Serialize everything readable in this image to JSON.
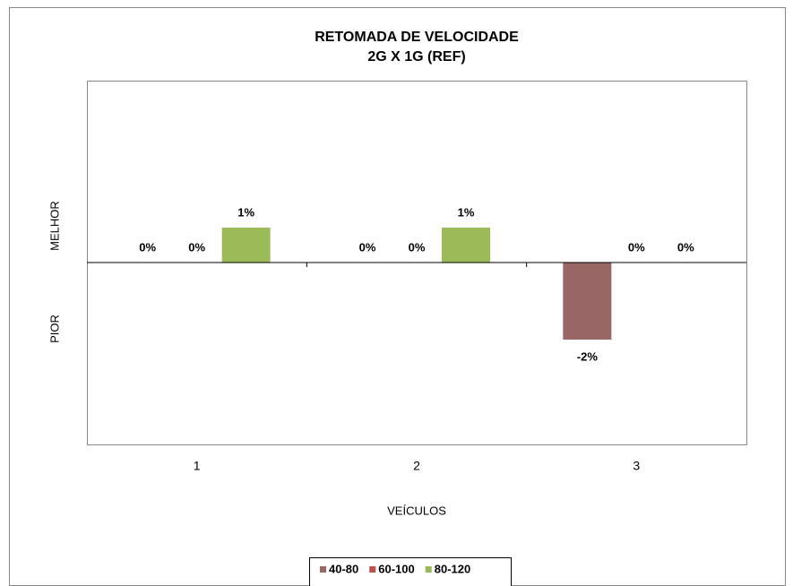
{
  "chart_data": {
    "type": "bar",
    "title": "RETOMADA DE VELOCIDADE",
    "subtitle": "2G X 1G (REF)",
    "x_label": "VEÍCULOS",
    "annotations": [
      "MELHOR",
      "PIOR"
    ],
    "categories": [
      "1",
      "2",
      "3"
    ],
    "series": [
      {
        "name": "40-80",
        "color": "#996666",
        "values": [
          0,
          0,
          -2.12
        ],
        "value_labels": [
          "0%",
          "0%",
          "-2%"
        ]
      },
      {
        "name": "60-100",
        "color": "#c0504d",
        "values": [
          0,
          0,
          0
        ],
        "value_labels": [
          "0%",
          "0%",
          "0%"
        ]
      },
      {
        "name": "80-120",
        "color": "#9bbb59",
        "values": [
          0.96,
          0.96,
          0
        ],
        "value_labels": [
          "1%",
          "1%",
          "0%"
        ]
      }
    ],
    "ylim": [
      -5,
      5
    ],
    "legend": "bottom"
  }
}
